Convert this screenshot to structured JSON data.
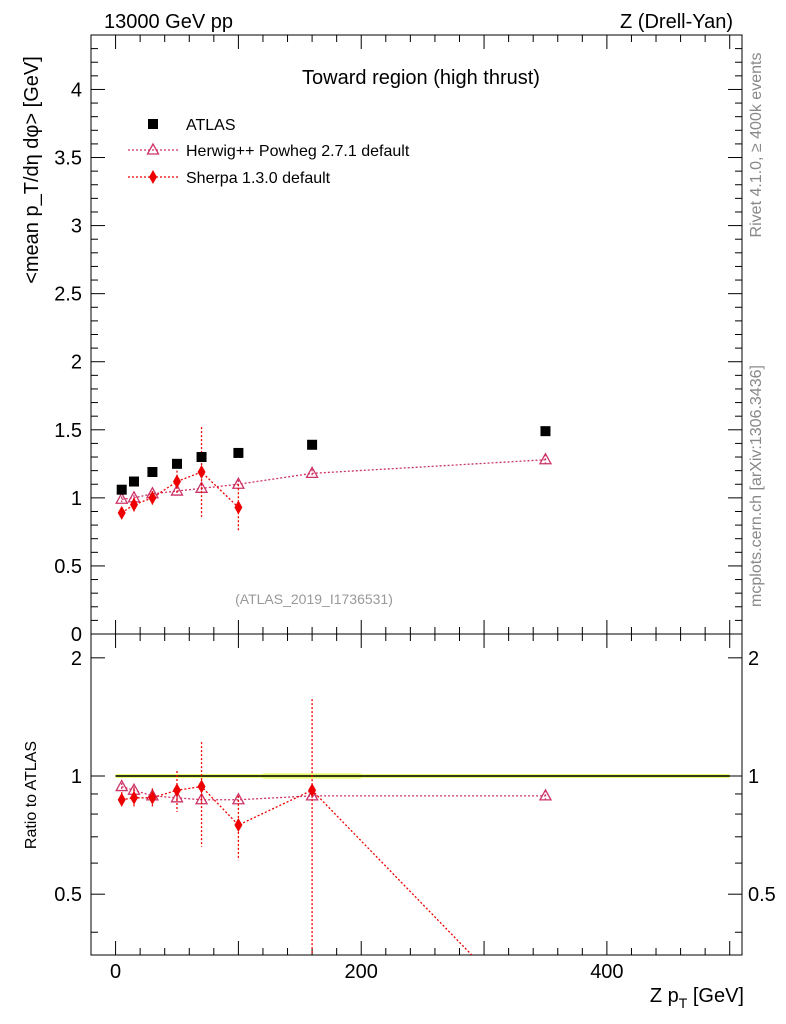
{
  "header": {
    "energy_label": "13000 GeV pp",
    "process_label": "Z (Drell-Yan)"
  },
  "side_labels": {
    "rivet": "Rivet 4.1.0, ≥ 400k events",
    "mcplots": "mcplots.cern.ch [arXiv:1306.3436]"
  },
  "colors": {
    "atlas": "#000000",
    "herwig": "#cc3366",
    "sherpa": "#ee0000",
    "band_outer": "#eeff77",
    "band_inner": "#ccee55"
  },
  "chart_data": [
    {
      "type": "scatter",
      "title": "Toward region (high thrust)",
      "ylabel": "<mean p_T/dη dφ> [GeV]",
      "ylim": [
        0,
        4.4
      ],
      "yticks": [
        0,
        0.5,
        1,
        1.5,
        2,
        2.5,
        3,
        3.5,
        4
      ],
      "ytick_labels": [
        "0",
        "0.5",
        "1",
        "1.5",
        "2",
        "2.5",
        "3",
        "3.5",
        "4"
      ],
      "watermark": "(ATLAS_2019_I1736531)",
      "series": [
        {
          "name": "ATLAS",
          "marker": "square",
          "x": [
            5,
            15,
            30,
            50,
            70,
            100,
            160,
            350
          ],
          "y": [
            1.06,
            1.12,
            1.19,
            1.25,
            1.3,
            1.33,
            1.39,
            1.49
          ],
          "yerr": [
            0.01,
            0.01,
            0.01,
            0.01,
            0.01,
            0.01,
            0.01,
            0.01
          ]
        },
        {
          "name": "Herwig++ Powheg 2.7.1 default",
          "marker": "open-triangle",
          "x": [
            5,
            15,
            30,
            50,
            70,
            100,
            160,
            350
          ],
          "y": [
            0.99,
            1.0,
            1.03,
            1.05,
            1.07,
            1.1,
            1.18,
            1.28
          ],
          "yerr": [
            0.02,
            0.02,
            0.02,
            0.03,
            0.03,
            0.03,
            0.03,
            0.04
          ]
        },
        {
          "name": "Sherpa 1.3.0 default",
          "marker": "diamond",
          "x": [
            5,
            15,
            30,
            50,
            70,
            100
          ],
          "y": [
            0.89,
            0.95,
            1.0,
            1.12,
            1.19,
            0.93
          ],
          "yerr": [
            0.04,
            0.05,
            0.05,
            0.08,
            0.33,
            0.17
          ]
        }
      ]
    },
    {
      "type": "scatter",
      "title": "",
      "ylabel": "Ratio to ATLAS",
      "xlabel": "Z p_T [GeV]",
      "xlim": [
        -20,
        510
      ],
      "xticks": [
        0,
        200,
        400
      ],
      "xtick_labels": [
        "0",
        "200",
        "400"
      ],
      "ylim": [
        0.35,
        2.3
      ],
      "yticks": [
        0.5,
        1,
        2
      ],
      "ytick_labels": [
        "0.5",
        "1",
        "2"
      ],
      "band": {
        "name": "ATLAS uncertainty",
        "x_edges": [
          0,
          10,
          20,
          40,
          60,
          80,
          120,
          200,
          500
        ],
        "half_width": [
          0.012,
          0.012,
          0.012,
          0.012,
          0.012,
          0.012,
          0.016,
          0.012
        ]
      },
      "series": [
        {
          "name": "Herwig++ Powheg 2.7.1 default",
          "marker": "open-triangle",
          "x": [
            5,
            15,
            30,
            50,
            70,
            100,
            160,
            350
          ],
          "y": [
            0.94,
            0.92,
            0.89,
            0.88,
            0.87,
            0.87,
            0.89,
            0.89
          ],
          "yerr": [
            0.02,
            0.02,
            0.02,
            0.02,
            0.02,
            0.02,
            0.02,
            0.03
          ]
        },
        {
          "name": "Sherpa 1.3.0 default",
          "marker": "diamond",
          "x": [
            5,
            15,
            30,
            50,
            70,
            100,
            160,
            290
          ],
          "y": [
            0.87,
            0.88,
            0.88,
            0.92,
            0.94,
            0.75,
            0.92,
            0.35
          ],
          "yerr": [
            0.04,
            0.05,
            0.05,
            0.11,
            0.28,
            0.14,
            0.65,
            0
          ],
          "draw_marker": [
            true,
            true,
            true,
            true,
            true,
            true,
            true,
            false
          ]
        }
      ]
    }
  ]
}
